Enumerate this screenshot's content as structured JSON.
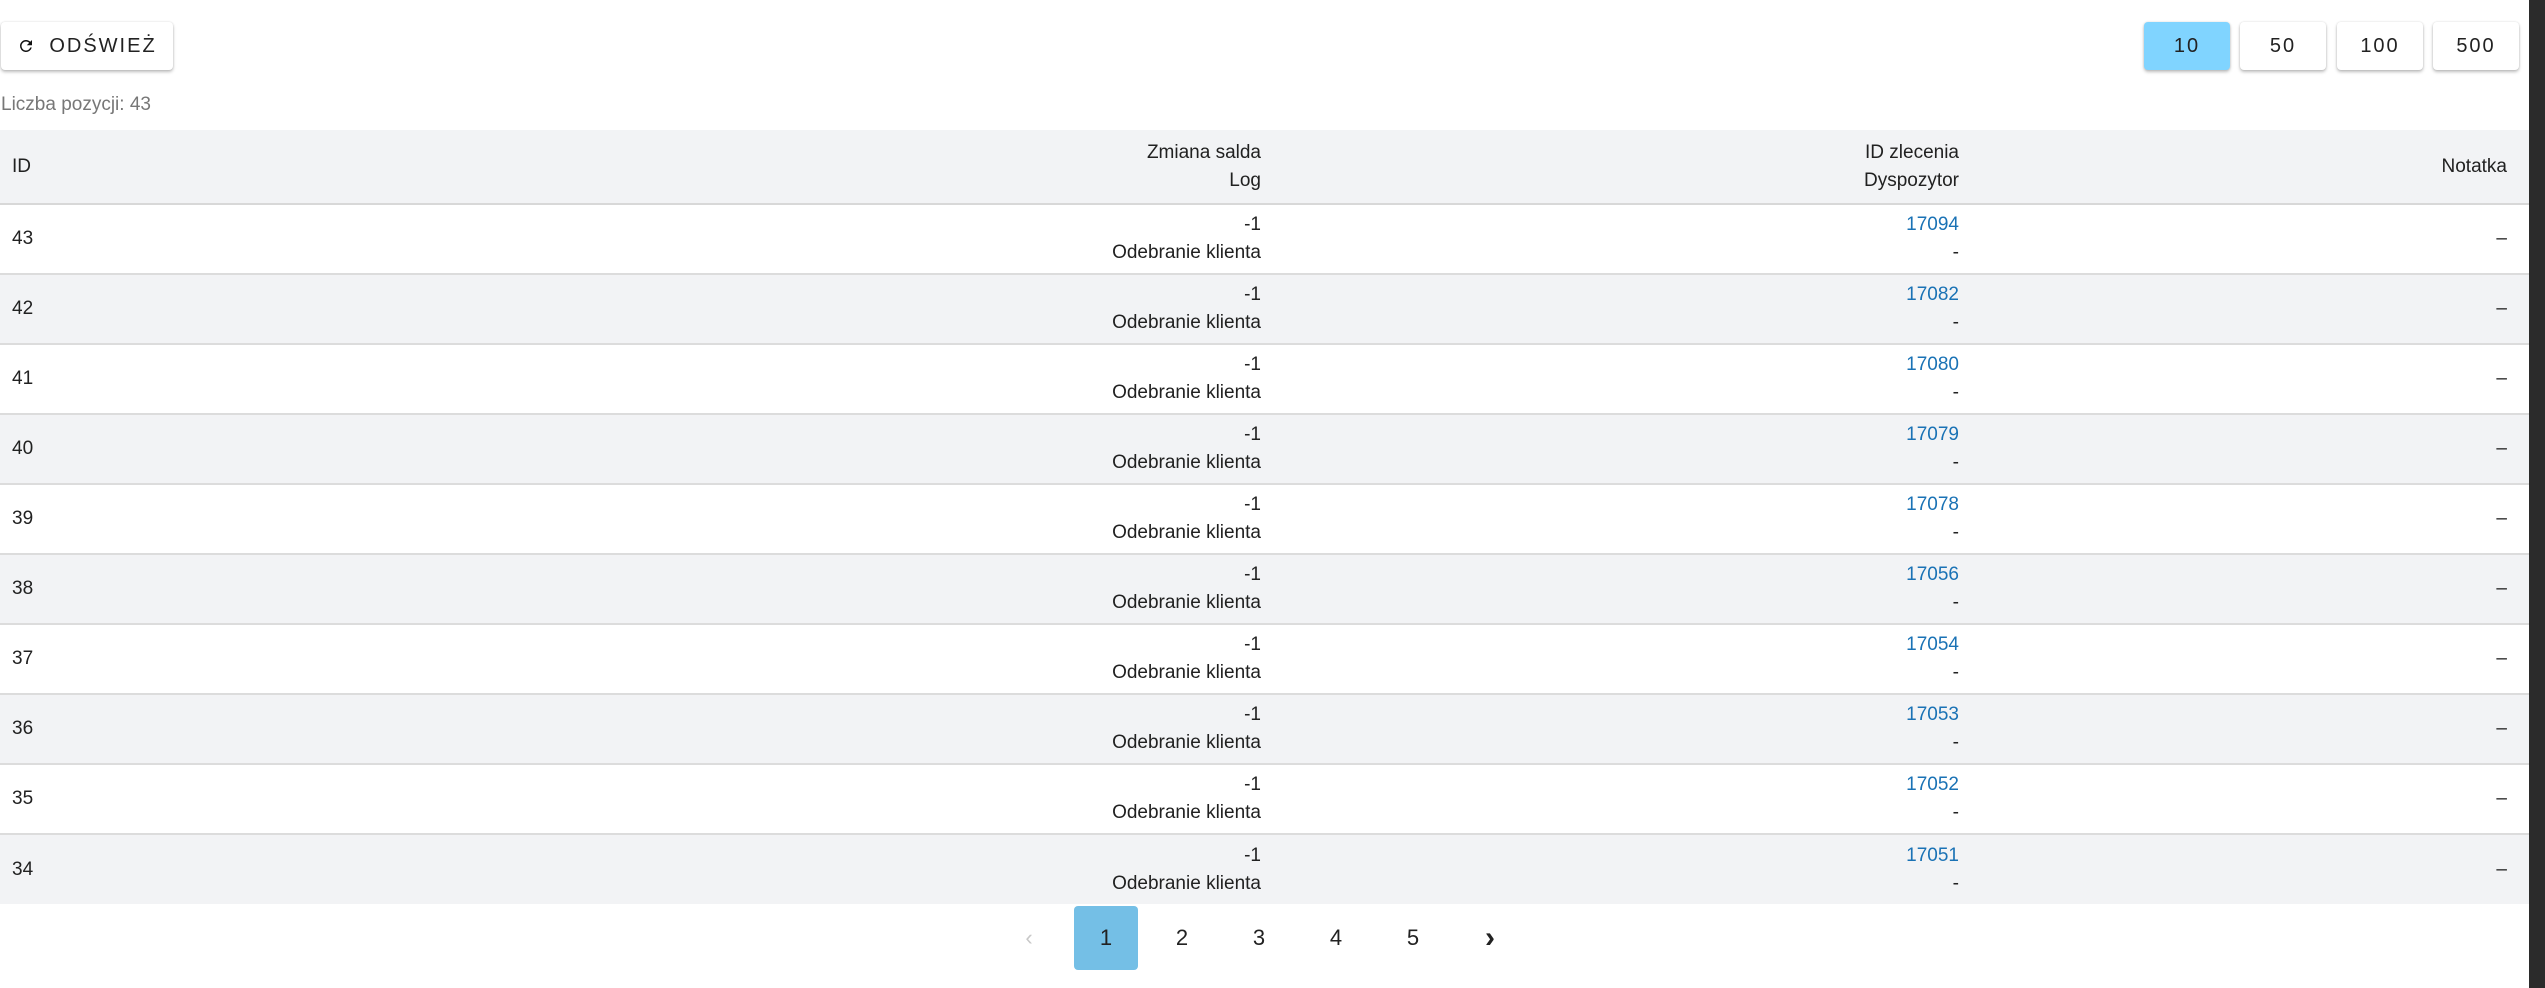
{
  "toolbar": {
    "refresh_label": "ODŚWIEŻ",
    "refresh_icon": "refresh-icon",
    "page_sizes": [
      "10",
      "50",
      "100",
      "500"
    ],
    "active_page_size": "10",
    "active_color": "#80d4ff"
  },
  "count_label": "Liczba pozycji: 43",
  "table": {
    "headers": {
      "id": "ID",
      "balance": "Zmiana salda",
      "log": "Log",
      "order_id": "ID zlecenia",
      "dispatcher": "Dyspozytor",
      "note": "Notatka"
    },
    "rows": [
      {
        "id": "43",
        "balance": "-1",
        "log": "Odebranie klienta",
        "order_id": "17094",
        "dispatcher": "-",
        "note": "–"
      },
      {
        "id": "42",
        "balance": "-1",
        "log": "Odebranie klienta",
        "order_id": "17082",
        "dispatcher": "-",
        "note": "–"
      },
      {
        "id": "41",
        "balance": "-1",
        "log": "Odebranie klienta",
        "order_id": "17080",
        "dispatcher": "-",
        "note": "–"
      },
      {
        "id": "40",
        "balance": "-1",
        "log": "Odebranie klienta",
        "order_id": "17079",
        "dispatcher": "-",
        "note": "–"
      },
      {
        "id": "39",
        "balance": "-1",
        "log": "Odebranie klienta",
        "order_id": "17078",
        "dispatcher": "-",
        "note": "–"
      },
      {
        "id": "38",
        "balance": "-1",
        "log": "Odebranie klienta",
        "order_id": "17056",
        "dispatcher": "-",
        "note": "–"
      },
      {
        "id": "37",
        "balance": "-1",
        "log": "Odebranie klienta",
        "order_id": "17054",
        "dispatcher": "-",
        "note": "–"
      },
      {
        "id": "36",
        "balance": "-1",
        "log": "Odebranie klienta",
        "order_id": "17053",
        "dispatcher": "-",
        "note": "–"
      },
      {
        "id": "35",
        "balance": "-1",
        "log": "Odebranie klienta",
        "order_id": "17052",
        "dispatcher": "-",
        "note": "–"
      },
      {
        "id": "34",
        "balance": "-1",
        "log": "Odebranie klienta",
        "order_id": "17051",
        "dispatcher": "-",
        "note": "–"
      }
    ]
  },
  "pagination": {
    "prev": "‹",
    "next": "›",
    "pages": [
      "1",
      "2",
      "3",
      "4",
      "5"
    ],
    "current": "1",
    "active_color": "#74bfe6"
  }
}
